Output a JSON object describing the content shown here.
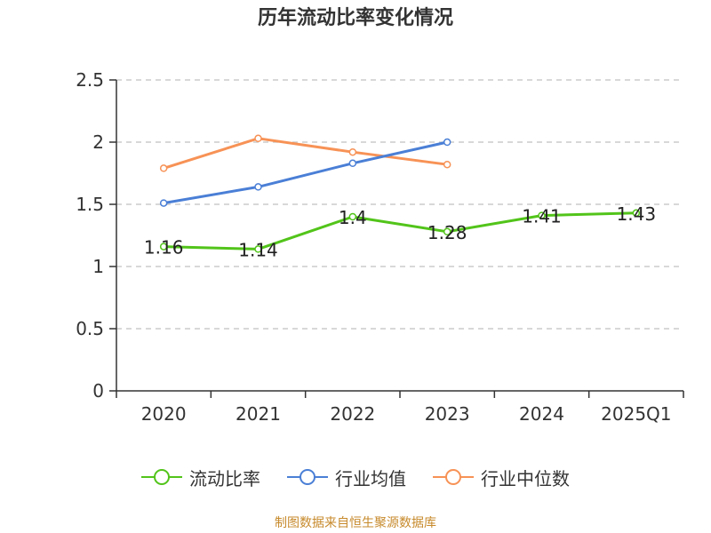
{
  "chart_data": {
    "type": "line",
    "title": "历年流动比率变化情况",
    "categories": [
      "2020",
      "2021",
      "2022",
      "2023",
      "2024",
      "2025Q1"
    ],
    "ylim": [
      0,
      2.5
    ],
    "yticks": [
      "0",
      "0.5",
      "1",
      "1.5",
      "2",
      "2.5"
    ],
    "ytick_values": [
      0,
      0.5,
      1,
      1.5,
      2,
      2.5
    ],
    "grid": true,
    "legend_position": "bottom",
    "series": [
      {
        "name": "流动比率",
        "color": "#52c41a",
        "values": [
          1.16,
          1.14,
          1.4,
          1.28,
          1.41,
          1.43
        ],
        "labels": [
          "1.16",
          "1.14",
          "1.4",
          "1.28",
          "1.41",
          "1.43"
        ]
      },
      {
        "name": "行业均值",
        "color": "#4a7fd6",
        "values": [
          1.51,
          1.64,
          1.83,
          2.0,
          null,
          null
        ]
      },
      {
        "name": "行业中位数",
        "color": "#f79256",
        "values": [
          1.79,
          2.03,
          1.92,
          1.82,
          null,
          null
        ]
      }
    ]
  },
  "footer": {
    "source": "制图数据来自恒生聚源数据库"
  }
}
